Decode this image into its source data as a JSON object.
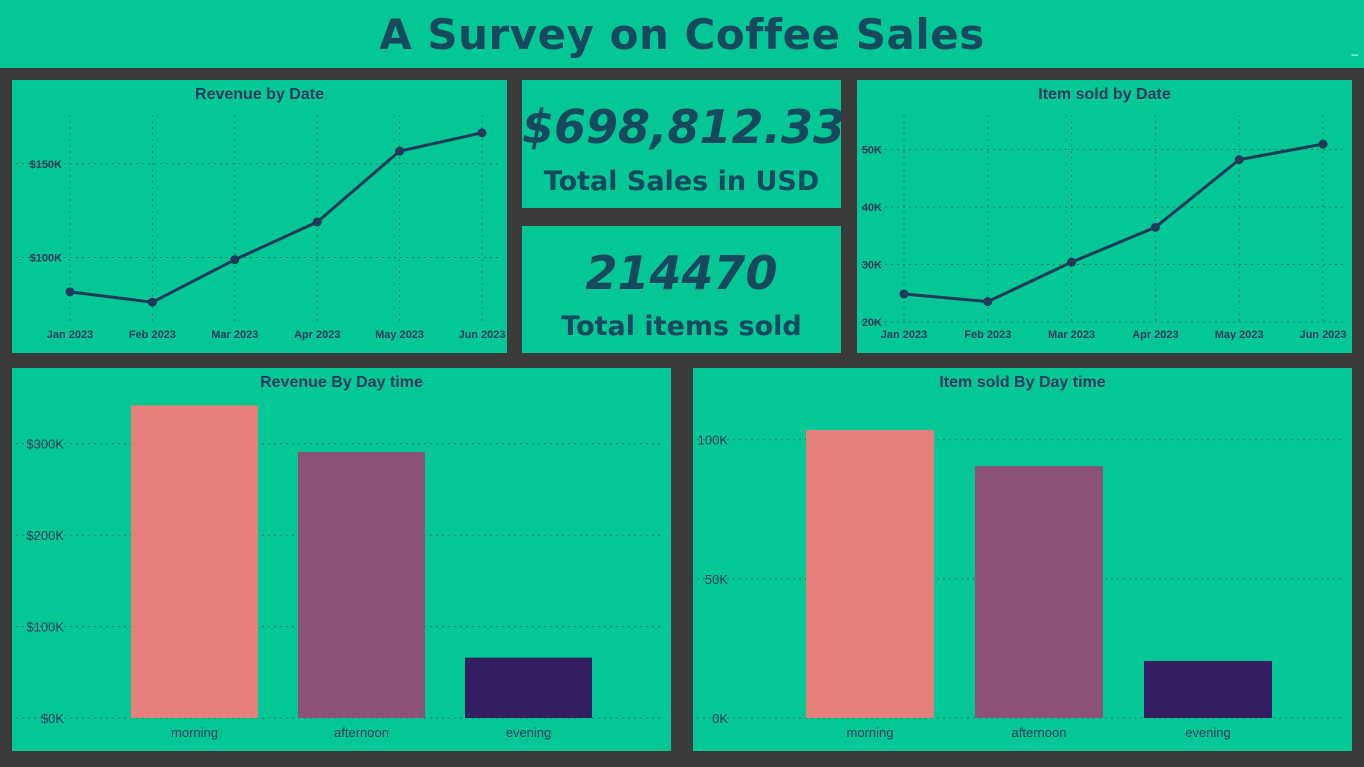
{
  "header": {
    "title": "A Survey on Coffee Sales"
  },
  "kpis": {
    "total_sales_value": "$698,812.33",
    "total_sales_label": "Total Sales in USD",
    "total_items_value": "214470",
    "total_items_label": "Total items sold"
  },
  "colors": {
    "panel_bg": "#03c896",
    "line": "#1f3a5a",
    "morning": "#e5807b",
    "afternoon": "#8b5273",
    "evening": "#321e61"
  },
  "chart_data": [
    {
      "id": "revenue_by_date",
      "type": "line",
      "title": "Revenue by Date",
      "x": [
        "Jan 2023",
        "Feb 2023",
        "Mar 2023",
        "Apr 2023",
        "May 2023",
        "Jun 2023"
      ],
      "values": [
        81678,
        76145,
        98835,
        118941,
        156728,
        166485
      ],
      "yticks": [
        100000,
        150000
      ],
      "yticklabels": [
        "$100K",
        "$150K"
      ],
      "ylim": [
        64000,
        176000
      ],
      "grid": true
    },
    {
      "id": "items_by_date",
      "type": "line",
      "title": "Item sold by Date",
      "x": [
        "Jan 2023",
        "Feb 2023",
        "Mar 2023",
        "Apr 2023",
        "May 2023",
        "Jun 2023"
      ],
      "values": [
        24870,
        23550,
        30406,
        36469,
        48233,
        50942
      ],
      "yticks": [
        20000,
        30000,
        40000,
        50000
      ],
      "yticklabels": [
        "20K",
        "30K",
        "40K",
        "50K"
      ],
      "ylim": [
        20000,
        56000
      ],
      "grid": true
    },
    {
      "id": "revenue_by_daytime",
      "type": "bar",
      "title": "Revenue By Day time",
      "categories": [
        "morning",
        "afternoon",
        "evening"
      ],
      "values": [
        342000,
        291000,
        66000
      ],
      "yticks": [
        0,
        100000,
        200000,
        300000
      ],
      "yticklabels": [
        "$0K",
        "$100K",
        "$200K",
        "$300K"
      ],
      "ylim": [
        0,
        350000
      ],
      "grid": true
    },
    {
      "id": "items_by_daytime",
      "type": "bar",
      "title": "Item sold By Day time",
      "categories": [
        "morning",
        "afternoon",
        "evening"
      ],
      "values": [
        103500,
        90500,
        20500
      ],
      "yticks": [
        0,
        50000,
        100000
      ],
      "yticklabels": [
        "0K",
        "50K",
        "100K"
      ],
      "ylim": [
        0,
        115000
      ],
      "grid": true
    }
  ]
}
